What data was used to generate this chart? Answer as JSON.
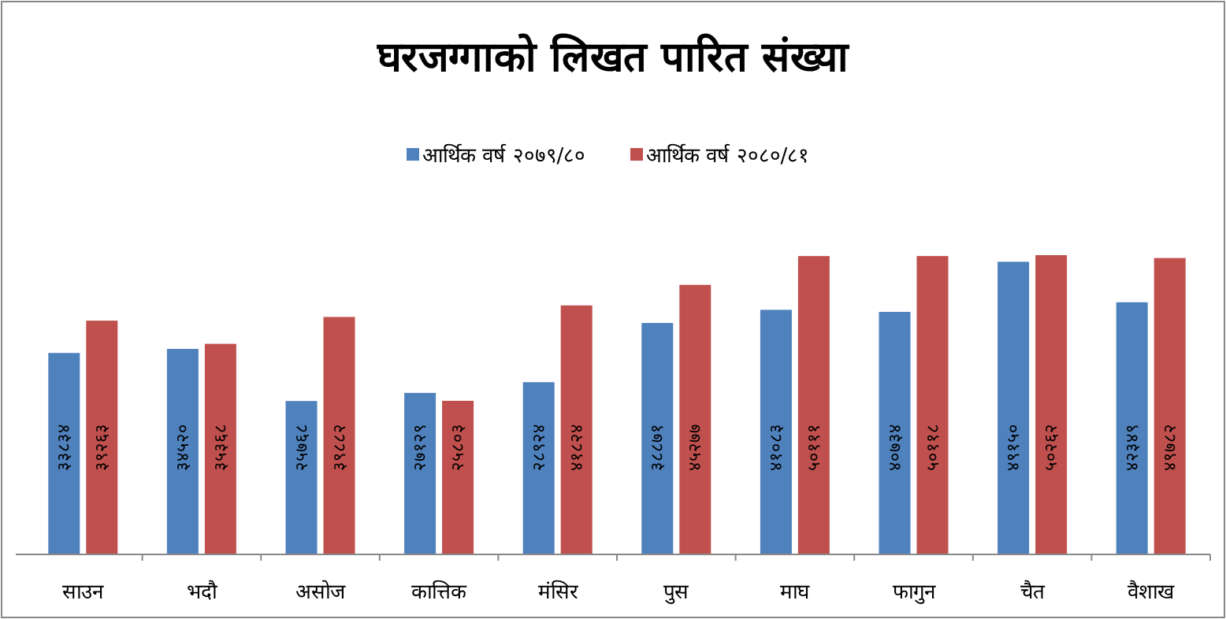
{
  "chart_data": {
    "type": "bar",
    "title": "घरजग्गाको लिखत पारित संख्या",
    "legend": "top",
    "categories": [
      "साउन",
      "भदौ",
      "असोज",
      "कात्तिक",
      "मंसिर",
      "पुस",
      "माघ",
      "फागुन",
      "चैत",
      "वैशाख"
    ],
    "series": [
      {
        "name": "आर्थिक वर्ष २०७९/८०",
        "color": "#4f81bd",
        "values": [
          33834,
          34520,
          25768,
          27129,
          28924,
          38871,
          41083,
          40734,
          49150,
          42349
        ],
        "value_labels": [
          "३३८३४",
          "३४५२०",
          "२५७६८",
          "२७१२९",
          "२८९२४",
          "३८८७१",
          "४१०८३",
          "४०७३४",
          "४९१५०",
          "४२३४९"
        ]
      },
      {
        "name": "आर्थिक वर्ष २०८०/८१",
        "color": "#c0504d",
        "values": [
          39263,
          35368,
          39882,
          25803,
          41824,
          45277,
          50111,
          50118,
          50262,
          49782
        ],
        "value_labels": [
          "३९२६३",
          "३५३६८",
          "३९८८२",
          "२५८०३",
          "४१८२४",
          "४५२७७",
          "५०१११",
          "५०११८",
          "५०२६२",
          "४९७८२"
        ]
      }
    ]
  }
}
